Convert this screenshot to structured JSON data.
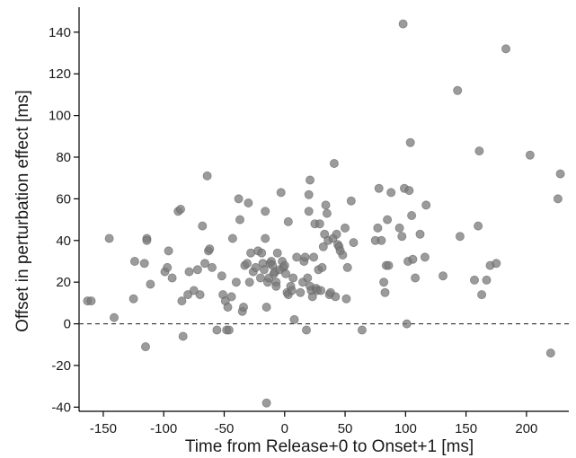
{
  "chart_data": {
    "type": "scatter",
    "xlabel": "Time from Release+0 to Onset+1 [ms]",
    "ylabel": "Offset in perturbation effect [ms]",
    "xlim": [
      -170,
      235
    ],
    "ylim": [
      -42,
      152
    ],
    "xticks": [
      -150,
      -100,
      -50,
      0,
      50,
      100,
      150,
      200
    ],
    "yticks": [
      -40,
      -20,
      0,
      20,
      40,
      60,
      80,
      100,
      120,
      140
    ],
    "reference_line": {
      "y": 0,
      "style": "dashed"
    },
    "grid": false,
    "legend": "none",
    "colors": {
      "marker_fill": "#7a7a7a",
      "marker_edge": "#5e5e5e",
      "axis": "#000000"
    },
    "series": [
      {
        "points": [
          [
            -163,
            11
          ],
          [
            -160,
            11
          ],
          [
            -145,
            41
          ],
          [
            -141,
            3
          ],
          [
            -125,
            12
          ],
          [
            -124,
            30
          ],
          [
            -116,
            29
          ],
          [
            -114,
            41
          ],
          [
            -114,
            40
          ],
          [
            -115,
            -11
          ],
          [
            -111,
            19
          ],
          [
            -99,
            25
          ],
          [
            -97,
            27
          ],
          [
            -96,
            35
          ],
          [
            -93,
            22
          ],
          [
            -88,
            54
          ],
          [
            -86,
            55
          ],
          [
            -85,
            11
          ],
          [
            -84,
            -6
          ],
          [
            -80,
            14
          ],
          [
            -79,
            25
          ],
          [
            -75,
            16
          ],
          [
            -72,
            26
          ],
          [
            -70,
            14
          ],
          [
            -68,
            47
          ],
          [
            -66,
            29
          ],
          [
            -64,
            71
          ],
          [
            -63,
            35
          ],
          [
            -62,
            36
          ],
          [
            -60,
            27
          ],
          [
            -56,
            -3
          ],
          [
            -52,
            23
          ],
          [
            -51,
            14
          ],
          [
            -49,
            11
          ],
          [
            -48,
            -3
          ],
          [
            -47,
            8
          ],
          [
            -46,
            -3
          ],
          [
            -44,
            13
          ],
          [
            -43,
            41
          ],
          [
            -40,
            20
          ],
          [
            -38,
            60
          ],
          [
            -37,
            50
          ],
          [
            -35,
            6
          ],
          [
            -34,
            8
          ],
          [
            -33,
            28
          ],
          [
            -31,
            29
          ],
          [
            -30,
            58
          ],
          [
            -29,
            20
          ],
          [
            -28,
            34
          ],
          [
            -26,
            25
          ],
          [
            -24,
            27
          ],
          [
            -22,
            35
          ],
          [
            -20,
            22
          ],
          [
            -19,
            34
          ],
          [
            -18,
            29
          ],
          [
            -17,
            26
          ],
          [
            -16,
            41
          ],
          [
            -16,
            54
          ],
          [
            -15,
            8
          ],
          [
            -15,
            -38
          ],
          [
            -14,
            20
          ],
          [
            -13,
            22
          ],
          [
            -12,
            29
          ],
          [
            -11,
            30
          ],
          [
            -10,
            28
          ],
          [
            -9,
            24
          ],
          [
            -8,
            25
          ],
          [
            -7,
            20
          ],
          [
            -7,
            18
          ],
          [
            -6,
            34
          ],
          [
            -4,
            26
          ],
          [
            -3,
            63
          ],
          [
            -2,
            30
          ],
          [
            -1,
            27
          ],
          [
            0,
            28
          ],
          [
            1,
            24
          ],
          [
            2,
            15
          ],
          [
            3,
            14
          ],
          [
            3,
            49
          ],
          [
            5,
            18
          ],
          [
            6,
            16
          ],
          [
            7,
            22
          ],
          [
            8,
            2
          ],
          [
            10,
            32
          ],
          [
            13,
            15
          ],
          [
            15,
            20
          ],
          [
            16,
            30
          ],
          [
            17,
            32
          ],
          [
            18,
            -3
          ],
          [
            19,
            22
          ],
          [
            20,
            54
          ],
          [
            20,
            62
          ],
          [
            21,
            69
          ],
          [
            21,
            18
          ],
          [
            22,
            16
          ],
          [
            23,
            13
          ],
          [
            24,
            32
          ],
          [
            25,
            48
          ],
          [
            26,
            17
          ],
          [
            27,
            16
          ],
          [
            28,
            26
          ],
          [
            29,
            48
          ],
          [
            30,
            16
          ],
          [
            31,
            27
          ],
          [
            32,
            37
          ],
          [
            33,
            43
          ],
          [
            34,
            57
          ],
          [
            35,
            53
          ],
          [
            36,
            40
          ],
          [
            37,
            14
          ],
          [
            38,
            15
          ],
          [
            40,
            41
          ],
          [
            41,
            77
          ],
          [
            42,
            13
          ],
          [
            43,
            43
          ],
          [
            44,
            38
          ],
          [
            45,
            37
          ],
          [
            46,
            35
          ],
          [
            48,
            33
          ],
          [
            50,
            46
          ],
          [
            51,
            12
          ],
          [
            52,
            27
          ],
          [
            55,
            59
          ],
          [
            57,
            39
          ],
          [
            64,
            -3
          ],
          [
            75,
            40
          ],
          [
            77,
            46
          ],
          [
            78,
            65
          ],
          [
            80,
            40
          ],
          [
            82,
            20
          ],
          [
            83,
            15
          ],
          [
            84,
            28
          ],
          [
            85,
            50
          ],
          [
            86,
            28
          ],
          [
            88,
            63
          ],
          [
            95,
            46
          ],
          [
            97,
            42
          ],
          [
            98,
            144
          ],
          [
            99,
            65
          ],
          [
            101,
            0
          ],
          [
            102,
            30
          ],
          [
            103,
            64
          ],
          [
            104,
            87
          ],
          [
            105,
            52
          ],
          [
            106,
            31
          ],
          [
            108,
            22
          ],
          [
            112,
            43
          ],
          [
            116,
            32
          ],
          [
            117,
            57
          ],
          [
            131,
            23
          ],
          [
            143,
            112
          ],
          [
            145,
            42
          ],
          [
            157,
            21
          ],
          [
            160,
            47
          ],
          [
            161,
            83
          ],
          [
            163,
            14
          ],
          [
            167,
            21
          ],
          [
            170,
            28
          ],
          [
            175,
            29
          ],
          [
            183,
            132
          ],
          [
            203,
            81
          ],
          [
            220,
            -14
          ],
          [
            226,
            60
          ],
          [
            228,
            72
          ]
        ]
      }
    ]
  }
}
